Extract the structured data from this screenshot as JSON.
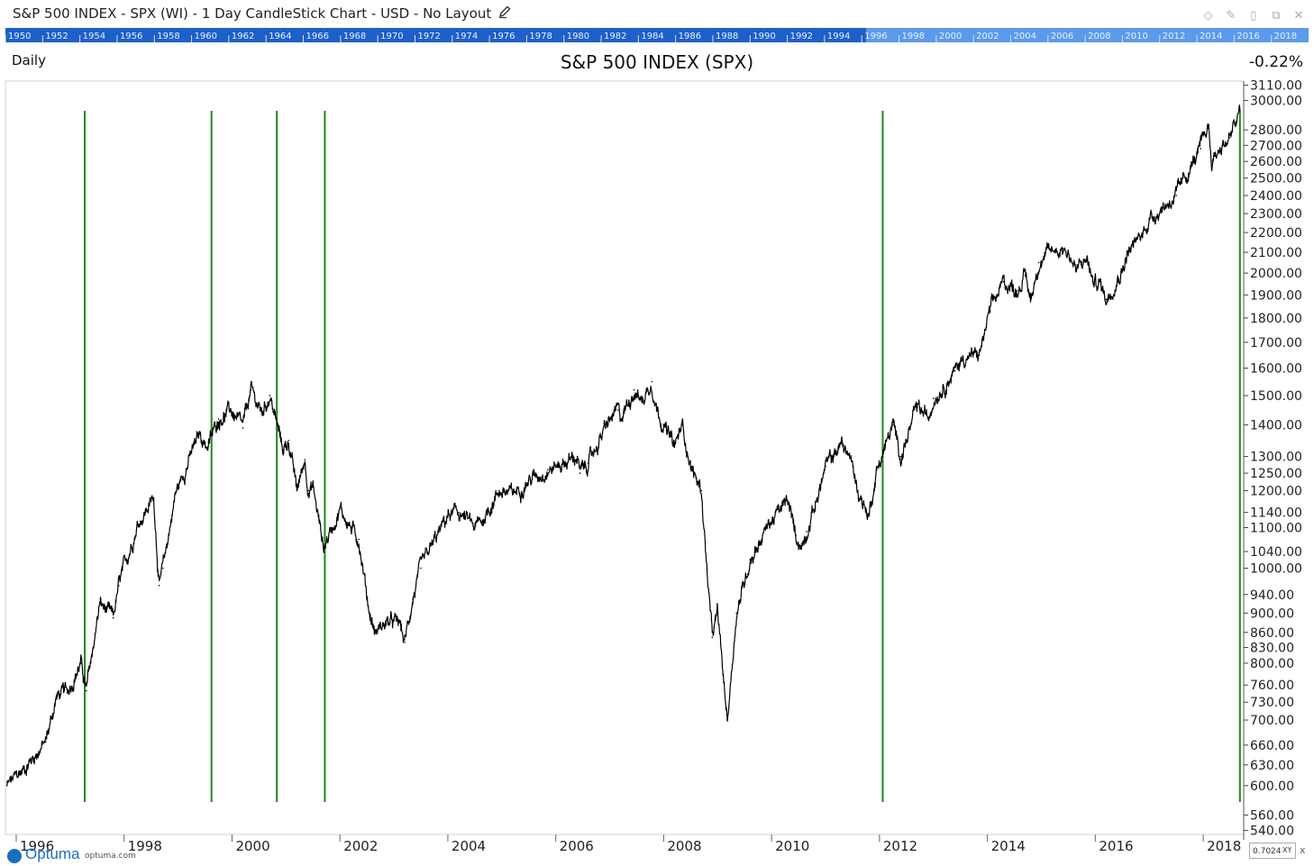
{
  "window": {
    "title": "S&P 500 INDEX - SPX (WI) - 1 Day CandleStick Chart - USD - No Layout",
    "edit_icon": "pencil-icon",
    "buttons": [
      "diamond-icon",
      "pin-icon",
      "restore-icon",
      "copy-icon",
      "close-icon"
    ]
  },
  "timebar": {
    "labels": [
      "1950",
      "1952",
      "1954",
      "1956",
      "1958",
      "1960",
      "1962",
      "1964",
      "1966",
      "1968",
      "1970",
      "1972",
      "1974",
      "1976",
      "1978",
      "1980",
      "1982",
      "1984",
      "1986",
      "1988",
      "1990",
      "1992",
      "1994",
      "1996",
      "1998",
      "2000",
      "2002",
      "2004",
      "2006",
      "2008",
      "2010",
      "2012",
      "2014",
      "2016",
      "2018"
    ],
    "dark_color": "#1f5fc8",
    "light_color": "#5b9bea"
  },
  "header": {
    "period": "Daily",
    "title": "S&P 500 INDEX (SPX)",
    "change": "-0.22%"
  },
  "chart_data": {
    "type": "line",
    "title": "S&P 500 INDEX (SPX)",
    "y_scale": "log",
    "ylim": [
      535,
      3140
    ],
    "xlim": [
      1995.8,
      2018.75
    ],
    "y_ticks": [
      3110,
      3000,
      2800,
      2700,
      2600,
      2500,
      2400,
      2300,
      2200,
      2100,
      2000,
      1900,
      1800,
      1700,
      1600,
      1500,
      1400,
      1300,
      1250,
      1200,
      1140,
      1100,
      1040,
      1000,
      940,
      900,
      860,
      830,
      800,
      760,
      730,
      700,
      660,
      630,
      600,
      560,
      540
    ],
    "y_tick_labels": [
      "3110.00",
      "3000.00",
      "2800.00",
      "2700.00",
      "2600.00",
      "2500.00",
      "2400.00",
      "2300.00",
      "2200.00",
      "2100.00",
      "2000.00",
      "1900.00",
      "1800.00",
      "1700.00",
      "1600.00",
      "1500.00",
      "1400.00",
      "1300.00",
      "1250.00",
      "1200.00",
      "1140.00",
      "1100.00",
      "1040.00",
      "1000.00",
      "940.00",
      "900.00",
      "860.00",
      "830.00",
      "800.00",
      "760.00",
      "730.00",
      "700.00",
      "660.00",
      "630.00",
      "600.00",
      "560.00",
      "540.00"
    ],
    "x_ticks": [
      1996,
      1998,
      2000,
      2002,
      2004,
      2006,
      2008,
      2010,
      2012,
      2014,
      2016,
      2018
    ],
    "x_tick_labels": [
      "1996",
      "1998",
      "2000",
      "2002",
      "2004",
      "2006",
      "2008",
      "2010",
      "2012",
      "2014",
      "2016",
      "2018"
    ],
    "series": [
      {
        "line_color": "#000000",
        "x": [
          1995.83,
          1996.1,
          1996.3,
          1996.55,
          1996.75,
          1996.95,
          1997.2,
          1997.3,
          1997.55,
          1997.8,
          1997.9,
          1998.25,
          1998.55,
          1998.65,
          1998.72,
          1998.95,
          1999.25,
          1999.4,
          1999.55,
          1999.75,
          1999.97,
          2000.2,
          2000.35,
          2000.55,
          2000.7,
          2000.95,
          2001.05,
          2001.2,
          2001.35,
          2001.42,
          2001.5,
          2001.7,
          2001.85,
          2002.0,
          2002.2,
          2002.35,
          2002.55,
          2002.65,
          2002.85,
          2003.1,
          2003.2,
          2003.35,
          2003.5,
          2003.85,
          2004.0,
          2004.2,
          2004.5,
          2004.65,
          2004.95,
          2005.2,
          2005.5,
          2005.85,
          2006.0,
          2006.4,
          2006.45,
          2006.6,
          2006.95,
          2007.15,
          2007.2,
          2007.45,
          2007.6,
          2007.78,
          2007.85,
          2008.0,
          2008.2,
          2008.35,
          2008.5,
          2008.7,
          2008.8,
          2008.9,
          2009.0,
          2009.1,
          2009.18,
          2009.35,
          2009.6,
          2009.95,
          2010.3,
          2010.45,
          2010.55,
          2010.65,
          2010.85,
          2011.0,
          2011.3,
          2011.45,
          2011.6,
          2011.8,
          2011.95,
          2012.25,
          2012.4,
          2012.7,
          2012.9,
          2013.0,
          2013.4,
          2013.55,
          2013.85,
          2014.05,
          2014.3,
          2014.55,
          2014.7,
          2014.8,
          2014.95,
          2015.2,
          2015.4,
          2015.5,
          2015.65,
          2015.85,
          2015.95,
          2016.1,
          2016.2,
          2016.5,
          2016.6,
          2016.85,
          2017.0,
          2017.5,
          2017.95,
          2018.1,
          2018.15,
          2018.35,
          2018.5,
          2018.68
        ],
        "values": [
          600,
          620,
          640,
          665,
          740,
          750,
          800,
          750,
          920,
          890,
          960,
          1110,
          1180,
          960,
          1000,
          1190,
          1310,
          1370,
          1330,
          1420,
          1450,
          1390,
          1520,
          1440,
          1500,
          1320,
          1350,
          1200,
          1290,
          1200,
          1210,
          1050,
          1100,
          1150,
          1100,
          1070,
          900,
          860,
          880,
          880,
          840,
          930,
          1000,
          1090,
          1130,
          1140,
          1100,
          1120,
          1200,
          1190,
          1230,
          1260,
          1270,
          1300,
          1250,
          1280,
          1400,
          1450,
          1420,
          1520,
          1480,
          1550,
          1470,
          1400,
          1330,
          1400,
          1270,
          1200,
          1000,
          850,
          900,
          780,
          700,
          900,
          1020,
          1110,
          1170,
          1080,
          1050,
          1090,
          1180,
          1270,
          1340,
          1300,
          1200,
          1130,
          1260,
          1400,
          1300,
          1460,
          1420,
          1490,
          1590,
          1640,
          1650,
          1830,
          1960,
          1920,
          1990,
          1880,
          2050,
          2110,
          2120,
          2100,
          2010,
          2070,
          1960,
          1950,
          1880,
          2020,
          2100,
          2180,
          2270,
          2400,
          2680,
          2830,
          2600,
          2700,
          2750,
          2930
        ]
      }
    ],
    "cycle_markers": {
      "color": "#1a8a1a",
      "x": [
        1997.27,
        1999.62,
        2000.83,
        2001.72,
        2012.06,
        2018.68
      ]
    },
    "grid": false,
    "legend": "none"
  },
  "footer": {
    "logo": "Optuma",
    "url": "optuma.com",
    "zoom_value": "0.7024",
    "xy_label": "XY",
    "close": "x"
  }
}
